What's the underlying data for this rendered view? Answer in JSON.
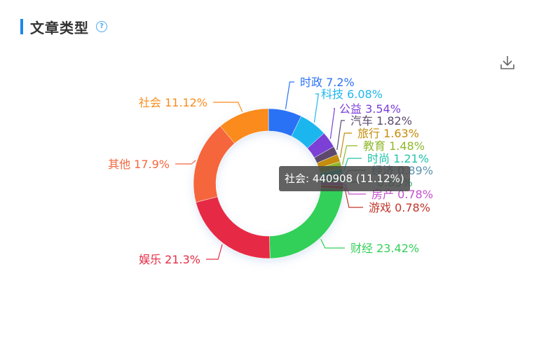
{
  "header": {
    "title": "文章类型",
    "help_icon": "question-circle-icon"
  },
  "toolbar": {
    "download_icon": "download-icon"
  },
  "tooltip": {
    "text": "社会: 440908 (11.12%)"
  },
  "chart_data": {
    "type": "pie",
    "title": "文章类型",
    "donut": true,
    "slices": [
      {
        "name": "时政",
        "value": 7.2,
        "label": "时政 7.2%",
        "color": "#2b72f5"
      },
      {
        "name": "科技",
        "value": 6.08,
        "label": "科技 6.08%",
        "color": "#1fb6ee"
      },
      {
        "name": "公益",
        "value": 3.54,
        "label": "公益 3.54%",
        "color": "#7b3fd6"
      },
      {
        "name": "汽车",
        "value": 1.82,
        "label": "汽车 1.82%",
        "color": "#5c4a6d"
      },
      {
        "name": "旅行",
        "value": 1.63,
        "label": "旅行 1.63%",
        "color": "#c58c0b"
      },
      {
        "name": "教育",
        "value": 1.48,
        "label": "教育 1.48%",
        "color": "#8fb82a"
      },
      {
        "name": "时尚",
        "value": 1.21,
        "label": "时尚 1.21%",
        "color": "#22c3a8"
      },
      {
        "name": "经济",
        "value": 0.89,
        "label": "经济 0.89%",
        "color": "#5b93b0"
      },
      {
        "name": "",
        "value": 0.85,
        "label": "0.85%",
        "color": "#3fae7c"
      },
      {
        "name": "房产",
        "value": 0.78,
        "label": "房产 0.78%",
        "color": "#c64fd0"
      },
      {
        "name": "游戏",
        "value": 0.78,
        "label": "游戏 0.78%",
        "color": "#c0352b"
      },
      {
        "name": "财经",
        "value": 23.42,
        "label": "财经 23.42%",
        "color": "#33d058"
      },
      {
        "name": "娱乐",
        "value": 21.3,
        "label": "娱乐 21.3%",
        "color": "#e62c45"
      },
      {
        "name": "其他",
        "value": 17.9,
        "label": "其他 17.9%",
        "color": "#f5663c"
      },
      {
        "name": "社会",
        "value": 11.12,
        "label": "社会 11.12%",
        "color": "#fa8b1c"
      }
    ]
  }
}
